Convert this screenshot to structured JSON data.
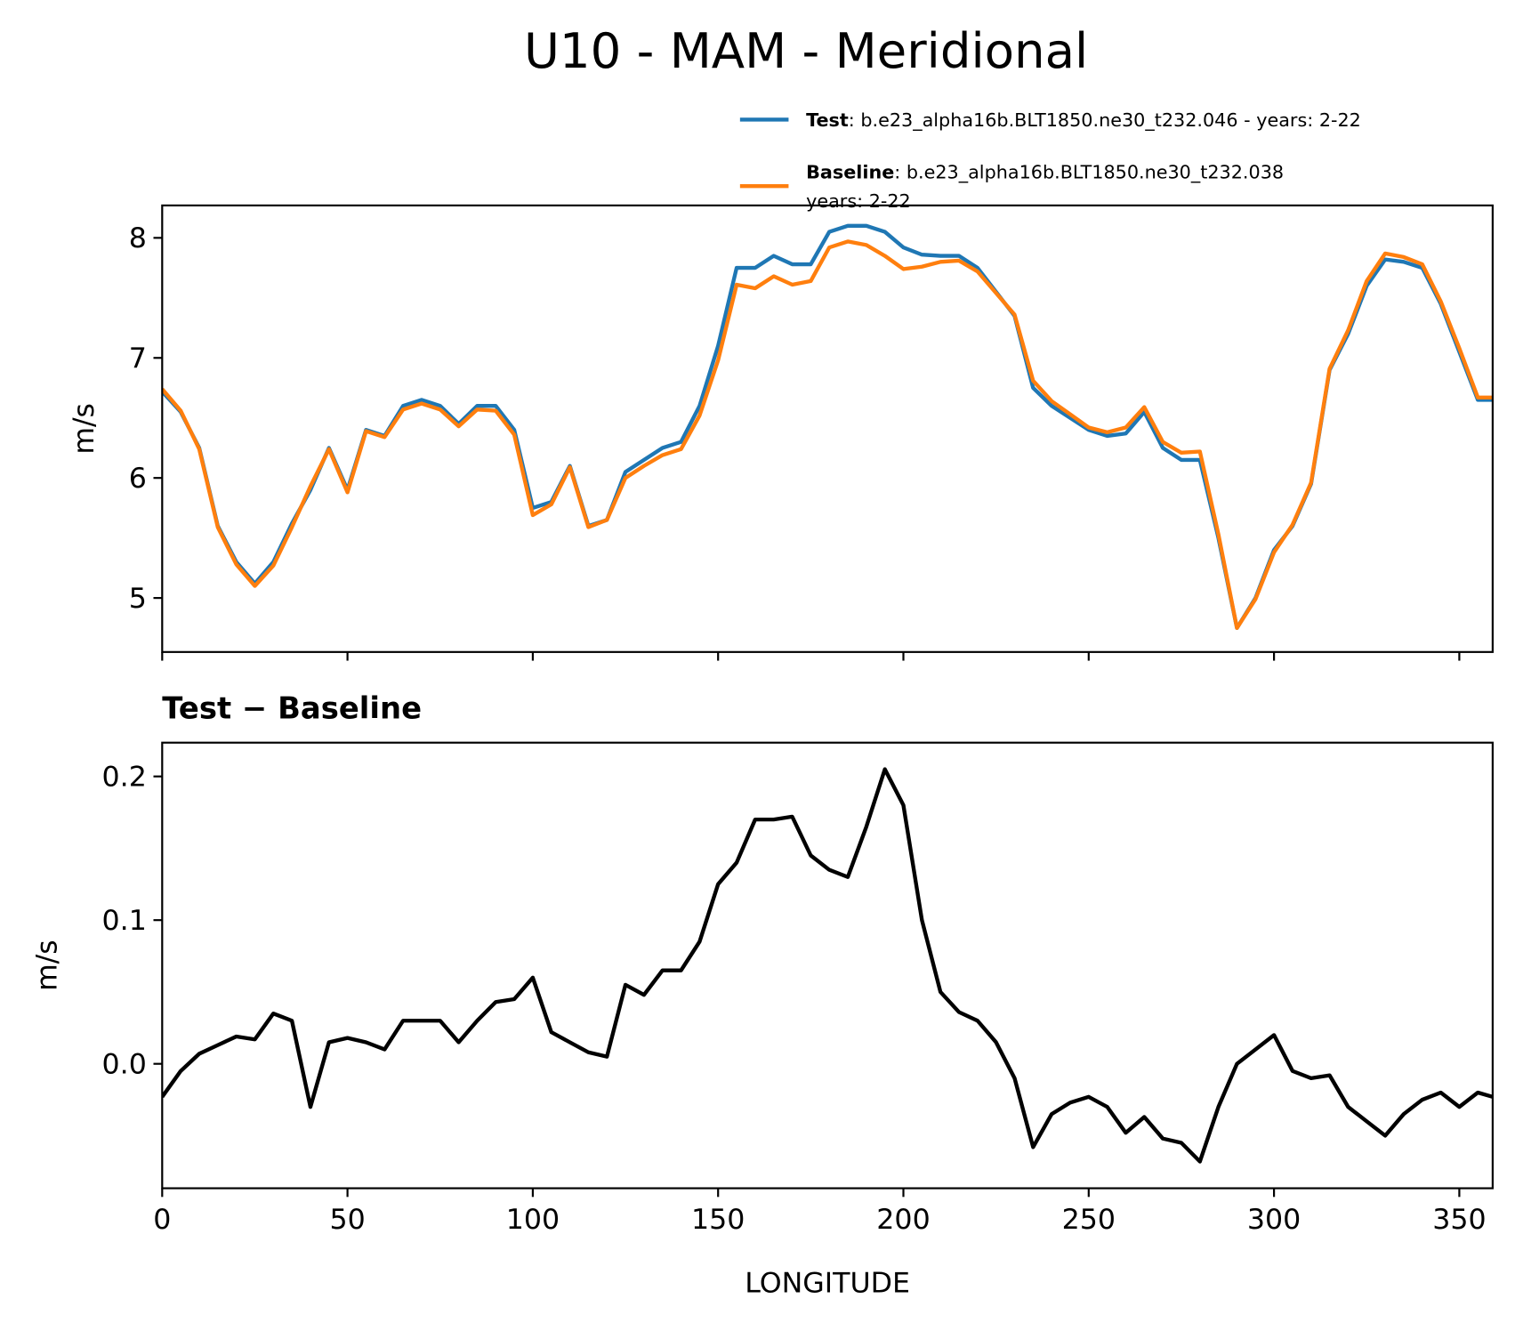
{
  "chart_data": [
    {
      "type": "line",
      "title": "U10 - MAM - Meridional",
      "ylabel": "m/s",
      "x": [
        0,
        5,
        10,
        15,
        20,
        25,
        30,
        35,
        40,
        45,
        50,
        55,
        60,
        65,
        70,
        75,
        80,
        85,
        90,
        95,
        100,
        105,
        110,
        115,
        120,
        125,
        130,
        135,
        140,
        145,
        150,
        155,
        160,
        165,
        170,
        175,
        180,
        185,
        190,
        195,
        200,
        205,
        210,
        215,
        220,
        225,
        230,
        235,
        240,
        245,
        250,
        255,
        260,
        265,
        270,
        275,
        280,
        285,
        290,
        295,
        300,
        305,
        310,
        315,
        320,
        325,
        330,
        335,
        340,
        345,
        350,
        355,
        359
      ],
      "series": [
        {
          "name": "Test",
          "description": [
            ": b.e23_alpha16b.BLT1850.ne30_t232.046 - years: 2-22"
          ],
          "color": "#1f77b4",
          "values": [
            6.72,
            6.55,
            6.25,
            5.6,
            5.3,
            5.12,
            5.3,
            5.62,
            5.9,
            6.25,
            5.9,
            6.4,
            6.35,
            6.6,
            6.65,
            6.6,
            6.45,
            6.6,
            6.6,
            6.4,
            5.75,
            5.8,
            6.1,
            5.6,
            5.65,
            6.05,
            6.15,
            6.25,
            6.3,
            6.6,
            7.1,
            7.75,
            7.75,
            7.85,
            7.78,
            7.78,
            8.05,
            8.1,
            8.1,
            8.05,
            7.92,
            7.86,
            7.85,
            7.85,
            7.75,
            7.55,
            7.35,
            6.75,
            6.6,
            6.5,
            6.4,
            6.35,
            6.37,
            6.55,
            6.25,
            6.15,
            6.15,
            5.5,
            4.75,
            5.0,
            5.4,
            5.6,
            5.95,
            6.9,
            7.2,
            7.6,
            7.82,
            7.8,
            7.75,
            7.45,
            7.05,
            6.65,
            6.65
          ]
        },
        {
          "name": "Baseline",
          "description": [
            ": b.e23_alpha16b.BLT1850.ne30_t232.038",
            "years: 2-22"
          ],
          "color": "#ff7f0e",
          "values": [
            6.74,
            6.56,
            6.24,
            5.59,
            5.28,
            5.1,
            5.27,
            5.59,
            5.93,
            6.24,
            5.88,
            6.39,
            6.34,
            6.57,
            6.62,
            6.57,
            6.43,
            6.57,
            6.56,
            6.36,
            5.69,
            5.78,
            6.09,
            5.59,
            5.65,
            6.0,
            6.1,
            6.19,
            6.24,
            6.52,
            6.98,
            7.61,
            7.58,
            7.68,
            7.61,
            7.64,
            7.92,
            7.97,
            7.94,
            7.85,
            7.74,
            7.76,
            7.8,
            7.81,
            7.72,
            7.54,
            7.36,
            6.81,
            6.64,
            6.53,
            6.42,
            6.38,
            6.42,
            6.59,
            6.3,
            6.21,
            6.22,
            5.53,
            4.75,
            4.99,
            5.38,
            5.61,
            5.96,
            6.91,
            7.23,
            7.64,
            7.87,
            7.84,
            7.78,
            7.47,
            7.08,
            6.67,
            6.67
          ]
        }
      ],
      "xlim": [
        0,
        359
      ],
      "ylim": [
        4.55,
        8.27
      ],
      "yticks": [
        5,
        6,
        7,
        8
      ]
    },
    {
      "type": "line",
      "title": "Test − Baseline",
      "xlabel": "LONGITUDE",
      "ylabel": "m/s",
      "x": [
        0,
        5,
        10,
        15,
        20,
        25,
        30,
        35,
        40,
        45,
        50,
        55,
        60,
        65,
        70,
        75,
        80,
        85,
        90,
        95,
        100,
        105,
        110,
        115,
        120,
        125,
        130,
        135,
        140,
        145,
        150,
        155,
        160,
        165,
        170,
        175,
        180,
        185,
        190,
        195,
        200,
        205,
        210,
        215,
        220,
        225,
        230,
        235,
        240,
        245,
        250,
        255,
        260,
        265,
        270,
        275,
        280,
        285,
        290,
        295,
        300,
        305,
        310,
        315,
        320,
        325,
        330,
        335,
        340,
        345,
        350,
        355,
        359
      ],
      "series": [
        {
          "color": "#000000",
          "values": [
            -0.023,
            -0.005,
            0.007,
            0.013,
            0.019,
            0.017,
            0.035,
            0.03,
            -0.03,
            0.015,
            0.018,
            0.015,
            0.01,
            0.03,
            0.03,
            0.03,
            0.015,
            0.03,
            0.043,
            0.045,
            0.06,
            0.022,
            0.015,
            0.008,
            0.005,
            0.055,
            0.048,
            0.065,
            0.065,
            0.085,
            0.125,
            0.14,
            0.17,
            0.17,
            0.172,
            0.145,
            0.135,
            0.13,
            0.165,
            0.205,
            0.18,
            0.1,
            0.05,
            0.036,
            0.03,
            0.015,
            -0.01,
            -0.058,
            -0.035,
            -0.027,
            -0.023,
            -0.03,
            -0.048,
            -0.037,
            -0.052,
            -0.055,
            -0.068,
            -0.03,
            0.0,
            0.01,
            0.02,
            -0.005,
            -0.01,
            -0.008,
            -0.03,
            -0.04,
            -0.05,
            -0.035,
            -0.025,
            -0.02,
            -0.03,
            -0.02,
            -0.023
          ]
        }
      ],
      "xlim": [
        0,
        359
      ],
      "xticks": [
        0,
        50,
        100,
        150,
        200,
        250,
        300,
        350
      ],
      "ylim": [
        -0.0866,
        0.2235
      ],
      "yticks": [
        {
          "value": 0,
          "label": "0.0"
        },
        0.1,
        0.2
      ]
    }
  ]
}
